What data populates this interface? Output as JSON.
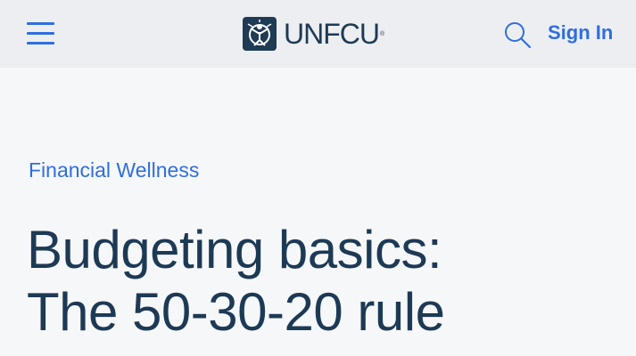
{
  "header": {
    "menu_icon": "hamburger-menu-icon",
    "logo": {
      "text": "UNFCU",
      "registered_mark": "®",
      "icon": "unfcu-emblem-icon"
    },
    "search_icon": "search-icon",
    "sign_in_label": "Sign In"
  },
  "article": {
    "category": "Financial Wellness",
    "title_line_1": "Budgeting basics:",
    "title_line_2": "The 50-30-20 rule"
  },
  "colors": {
    "accent": "#2f6ee0",
    "heading": "#1d3a55",
    "header_bg": "#edeef1",
    "page_bg": "#f6f7f9"
  }
}
